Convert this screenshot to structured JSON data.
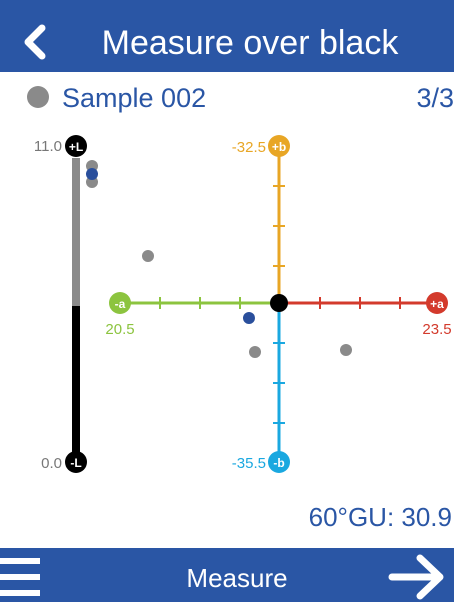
{
  "header": {
    "title": "Measure over black"
  },
  "sample": {
    "name": "Sample 002",
    "count": "3/3"
  },
  "plot": {
    "l_axis": {
      "top_badge": "+L",
      "bottom_badge": "-L",
      "top_value": "11.0",
      "bottom_value": "0.0"
    },
    "b_axis": {
      "top_badge": "+b",
      "bottom_badge": "-b",
      "top_value": "-32.5",
      "bottom_value": "-35.5"
    },
    "a_axis": {
      "left_badge": "-a",
      "right_badge": "+a",
      "left_value": "20.5",
      "right_value": "23.5"
    }
  },
  "gloss": "60°GU: 30.9",
  "footer": {
    "action": "Measure"
  }
}
